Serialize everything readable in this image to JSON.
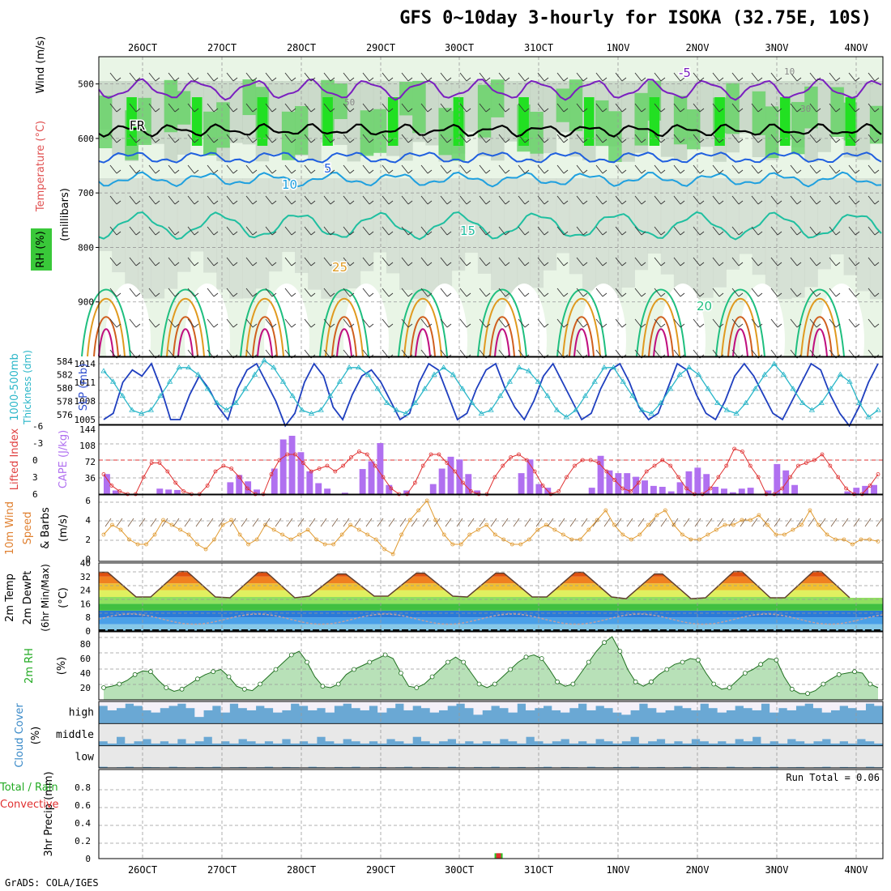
{
  "page": {
    "title": "GFS 0~10day 3-hourly for ISOKA (32.75E, 10S)",
    "footer": "GrADS: COLA/IGES"
  },
  "chart_data": [
    {
      "panel": "upper-air cross-section",
      "type": "heatmap",
      "ylabel": "(millibars)",
      "ylabels_left": [
        "Wind (m/s)",
        "Temperature (°C)",
        "RH (%)"
      ],
      "yticks": [
        500,
        600,
        700,
        800,
        900
      ],
      "ylim": [
        1000,
        450
      ],
      "x_date_labels": [
        "26OCT",
        "27OCT",
        "28OCT",
        "29OCT",
        "30OCT",
        "31OCT",
        "1NOV",
        "2NOV",
        "3NOV",
        "4NOV"
      ],
      "temperature_contour_labels": [
        "-5",
        "FR",
        "5",
        "10",
        "15",
        "20",
        "25"
      ],
      "rh_contour_labels": [
        "10",
        "30",
        "50"
      ],
      "freezing_level_mb": 585,
      "isotherm_levels_mb": {
        "-5": 510,
        "5": 635,
        "10": 675,
        "15": 760
      }
    },
    {
      "panel": "thickness-slp",
      "type": "line",
      "ylabel_left": "1000-500mb Thickness (dm)",
      "ylabel_right": "SLP (mb)",
      "yticks_left": [
        576,
        578,
        580,
        582,
        584
      ],
      "yticks_right": [
        1005,
        1008,
        1011,
        1014
      ],
      "series": [
        {
          "name": "SLP",
          "color": "#1f3fbf",
          "values": [
            1005,
            1006,
            1011,
            1013,
            1012,
            1014,
            1010,
            1005,
            1005,
            1009,
            1012,
            1010,
            1007,
            1005,
            1010,
            1013,
            1014,
            1011,
            1008,
            1004,
            1006,
            1011,
            1014,
            1012,
            1007,
            1005,
            1009,
            1012,
            1013,
            1011,
            1008,
            1005,
            1006,
            1011,
            1014,
            1013,
            1009,
            1005,
            1006,
            1010,
            1013,
            1014,
            1010,
            1007,
            1005,
            1008,
            1012,
            1014,
            1011,
            1008,
            1005,
            1006,
            1010,
            1013,
            1014,
            1011,
            1007,
            1005,
            1006,
            1010,
            1014,
            1013,
            1009,
            1006,
            1005,
            1008,
            1012,
            1014,
            1012,
            1009,
            1006,
            1005,
            1008,
            1011,
            1014,
            1013,
            1009,
            1006,
            1004,
            1007,
            1011,
            1014
          ]
        },
        {
          "name": "Thickness",
          "color": "#29b6c8",
          "values": [
            582.5,
            581,
            579,
            577,
            576.5,
            577,
            579,
            581,
            583,
            583,
            582,
            580,
            578,
            577,
            578,
            580,
            582,
            584,
            583,
            581,
            579,
            577,
            576.5,
            577,
            579,
            581,
            583,
            583,
            582,
            580,
            578,
            577,
            576.5,
            578,
            580,
            582,
            583,
            582,
            580,
            578,
            576.5,
            577,
            579,
            581,
            583,
            582.5,
            581,
            579,
            577,
            576,
            577,
            579,
            581,
            583,
            583,
            581,
            579,
            577,
            576.5,
            578,
            580,
            582,
            583,
            582,
            580,
            578,
            577,
            576.5,
            578,
            580,
            582,
            583.5,
            582,
            580,
            578,
            577,
            578,
            580,
            582,
            581,
            578,
            576,
            577
          ]
        }
      ]
    },
    {
      "panel": "lifted-index-cape",
      "type": "bar",
      "ylabel_left": "Lifted Index",
      "ylabel_right": "CAPE (J/kg)",
      "yticks_left": [
        -6,
        -3,
        0,
        3,
        6
      ],
      "yticks_right": [
        36,
        72,
        108,
        144
      ],
      "cape": [
        44,
        8,
        0,
        0,
        0,
        0,
        12,
        10,
        9,
        0,
        0,
        0,
        0,
        0,
        26,
        42,
        28,
        10,
        0,
        56,
        120,
        128,
        92,
        50,
        24,
        12,
        0,
        3,
        0,
        55,
        72,
        112,
        20,
        0,
        8,
        0,
        0,
        22,
        56,
        82,
        76,
        44,
        8,
        0,
        0,
        0,
        0,
        46,
        76,
        22,
        14,
        0,
        0,
        0,
        0,
        14,
        84,
        52,
        46,
        46,
        38,
        30,
        18,
        16,
        6,
        26,
        50,
        58,
        44,
        16,
        12,
        4,
        12,
        14,
        0,
        8,
        66,
        52,
        20,
        0,
        0,
        0,
        0,
        0,
        6,
        14,
        18,
        20
      ],
      "lifted_index": [
        2.5,
        4.5,
        5.5,
        6,
        6,
        3,
        0.5,
        0.5,
        2,
        4,
        5.5,
        6,
        6,
        4.5,
        2,
        1,
        1.5,
        3,
        5,
        6,
        6,
        2.5,
        0,
        -1,
        -1,
        0.5,
        2,
        1.5,
        1,
        2,
        1,
        -0.5,
        -1.5,
        -1,
        1,
        3,
        5,
        6,
        6,
        4,
        1,
        -1,
        -1,
        0.5,
        2,
        4,
        5.5,
        6,
        6,
        3,
        1,
        -0.5,
        -1,
        0,
        2,
        4.5,
        6,
        5.5,
        3,
        1,
        0,
        0,
        0.5,
        2,
        3.5,
        5,
        5.5,
        4,
        2,
        1,
        0,
        1,
        3,
        5,
        6,
        6,
        5,
        3,
        1,
        -2,
        -1.5,
        1,
        3,
        6,
        6,
        5,
        3,
        1,
        0.5,
        0,
        -1,
        1,
        3,
        5,
        6,
        6,
        4.5,
        2.5
      ]
    },
    {
      "panel": "10m-wind",
      "type": "line",
      "ylabel": "10m Wind Speed & Barbs (m/s)",
      "yticks": [
        0,
        2,
        4,
        6
      ],
      "values": [
        2.5,
        3.5,
        3,
        2,
        1.5,
        1.5,
        2.5,
        4,
        3.5,
        3,
        2.5,
        1.5,
        1,
        2,
        3.5,
        4,
        2.5,
        1.5,
        2,
        3.5,
        3,
        2.5,
        2,
        2.5,
        3,
        2,
        1.5,
        1.5,
        2.5,
        3.5,
        3,
        2.5,
        2,
        1,
        0.5,
        2.5,
        4,
        5,
        6,
        4,
        2.5,
        1.5,
        1.5,
        2.5,
        3,
        3.5,
        2.5,
        2,
        1.5,
        1.5,
        2,
        3,
        3.5,
        3,
        2.5,
        2,
        2,
        3,
        4,
        5,
        3.5,
        2.5,
        2,
        2.5,
        3.5,
        4.5,
        5,
        3.5,
        2.5,
        2,
        2,
        2.5,
        3,
        3.5,
        3.5,
        4,
        4,
        4.5,
        3.5,
        2.5,
        2.5,
        3,
        3.5,
        5,
        3.5,
        2.5,
        2,
        2,
        1.5,
        2,
        2,
        1.8
      ]
    },
    {
      "panel": "2m-temperature",
      "type": "area",
      "ylabel": "2m Temp 2m DewPt (6hr Min/Max) (°C)",
      "yticks": [
        0,
        8,
        16,
        24,
        32,
        40
      ],
      "temp_max_daily": [
        34.5,
        35,
        34.5,
        33.5,
        34,
        34,
        34.5,
        33.5,
        35
      ],
      "temp_min_daily": [
        20,
        20,
        19.5,
        20.5,
        20.5,
        20,
        20,
        19,
        19.5
      ],
      "dewpoint_range": [
        5,
        14
      ]
    },
    {
      "panel": "2m-rh",
      "type": "area",
      "ylabel": "2m RH (%)",
      "yticks": [
        20,
        40,
        60,
        80
      ],
      "values": [
        20,
        22,
        25,
        30,
        38,
        43,
        42,
        30,
        20,
        15,
        18,
        25,
        32,
        38,
        42,
        45,
        35,
        22,
        18,
        16,
        25,
        35,
        45,
        55,
        65,
        70,
        55,
        35,
        22,
        20,
        25,
        38,
        45,
        50,
        55,
        60,
        65,
        60,
        40,
        22,
        20,
        25,
        35,
        45,
        55,
        62,
        55,
        40,
        25,
        20,
        25,
        35,
        45,
        55,
        62,
        65,
        60,
        45,
        28,
        22,
        25,
        40,
        55,
        70,
        82,
        90,
        70,
        45,
        28,
        22,
        28,
        38,
        45,
        52,
        55,
        60,
        58,
        40,
        25,
        18,
        20,
        30,
        40,
        45,
        52,
        60,
        58,
        35,
        18,
        12,
        12,
        16,
        25,
        32,
        38,
        40,
        42,
        40,
        25,
        20
      ]
    },
    {
      "panel": "cloud-cover",
      "type": "heatmap",
      "ylabel": "Cloud Cover (%)",
      "levels": [
        "high",
        "middle",
        "low"
      ],
      "high": [
        0.8,
        0.6,
        0.7,
        0.9,
        0.8,
        0.6,
        0.5,
        0.7,
        0.8,
        0.9,
        0.7,
        0.3,
        0.6,
        0.8,
        0.5,
        0.9,
        0.7,
        0.6,
        0.8,
        0.7,
        0.5,
        0.6,
        0.9,
        0.8,
        0.6,
        0.7,
        0.5,
        0.8,
        0.9,
        0.7,
        0.6,
        0.8,
        0.5,
        0.7,
        0.9,
        0.6,
        0.8,
        0.7,
        0.5,
        0.6,
        0.8,
        0.9,
        0.7,
        0.4,
        0.6,
        0.8,
        0.7,
        0.5,
        0.9,
        0.6,
        0.7,
        0.8,
        0.6,
        0.5,
        0.7,
        0.9,
        0.6,
        0.8,
        0.7,
        0.5,
        0.4,
        0.6,
        0.9,
        0.7,
        0.5,
        0.6,
        0.8,
        0.7,
        0.6,
        0.9,
        0.7,
        0.5,
        0.6,
        0.8,
        0.7,
        0.6,
        0.9,
        0.5,
        0.7,
        0.6,
        0.8,
        0.9,
        0.7,
        0.5,
        0.6,
        0.8,
        0.7,
        0.6,
        0.9,
        0.8
      ],
      "middle": [
        0.2,
        0.1,
        0.4,
        0.1,
        0.2,
        0.3,
        0.1,
        0.2,
        0.1,
        0.3,
        0.1,
        0.2,
        0.4,
        0.1,
        0.2,
        0.1,
        0.3,
        0.2,
        0.1,
        0.2,
        0.1,
        0.3,
        0.1,
        0.2,
        0.1,
        0.4,
        0.2,
        0.1,
        0.3,
        0.2,
        0.1,
        0.2,
        0.1,
        0.3,
        0.2,
        0.1,
        0.4,
        0.2,
        0.1,
        0.2,
        0.3,
        0.1,
        0.2,
        0.1,
        0.2,
        0.1,
        0.3,
        0.2,
        0.1,
        0.4,
        0.2,
        0.1,
        0.2,
        0.3,
        0.1,
        0.2,
        0.1,
        0.3,
        0.2,
        0.1,
        0.2,
        0.4,
        0.1,
        0.2,
        0.3,
        0.1,
        0.2,
        0.1,
        0.3,
        0.2,
        0.1,
        0.2,
        0.1,
        0.3,
        0.2,
        0.4,
        0.1,
        0.2,
        0.1,
        0.3,
        0.2,
        0.1,
        0.2,
        0.3,
        0.1,
        0.2,
        0.1,
        0.3,
        0.2,
        0.1
      ],
      "low": [
        0.05,
        0.02,
        0.03,
        0.05,
        0.02,
        0.04,
        0.03,
        0.02,
        0.05,
        0.03,
        0.02,
        0.04,
        0.03,
        0.05,
        0.02,
        0.03,
        0.04,
        0.02,
        0.03,
        0.05,
        0.02,
        0.04,
        0.03,
        0.02,
        0.05,
        0.03,
        0.02,
        0.04,
        0.03,
        0.05,
        0.02,
        0.03,
        0.04,
        0.02,
        0.03,
        0.05,
        0.02,
        0.04,
        0.03,
        0.02,
        0.05,
        0.03,
        0.02,
        0.04,
        0.03,
        0.05,
        0.02,
        0.03,
        0.04,
        0.02,
        0.03,
        0.05,
        0.02,
        0.04,
        0.03,
        0.02,
        0.05,
        0.03,
        0.02,
        0.04,
        0.03,
        0.05,
        0.02,
        0.03,
        0.04,
        0.02,
        0.03,
        0.05,
        0.02,
        0.04,
        0.03,
        0.02,
        0.05,
        0.03,
        0.02,
        0.04,
        0.03,
        0.05,
        0.02,
        0.03,
        0.04,
        0.02,
        0.03,
        0.05,
        0.02,
        0.04,
        0.03,
        0.02,
        0.05,
        0.03
      ]
    },
    {
      "panel": "3hr-precip",
      "type": "bar",
      "ylabel": "3hr Precip (mm)",
      "ylabel_legend": [
        "Total / Rain",
        "Convective"
      ],
      "yticks": [
        0,
        0.2,
        0.4,
        0.6,
        0.8
      ],
      "run_total_label": "Run Total = 0.06",
      "bars": [
        {
          "x_day": 4.5,
          "total": 0.06,
          "convective": 0.06
        }
      ]
    }
  ]
}
